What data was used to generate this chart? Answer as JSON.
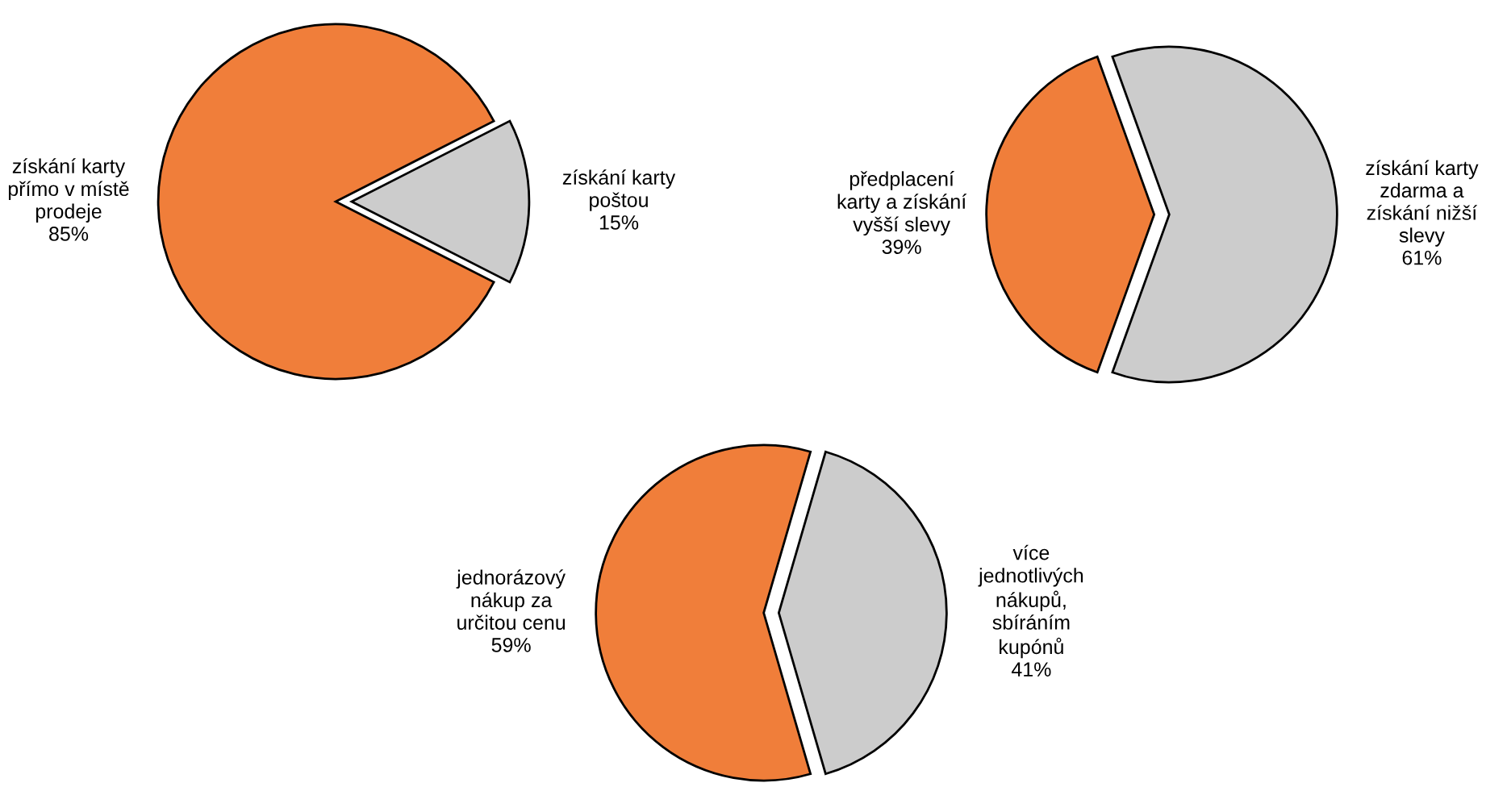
{
  "chart_data": [
    {
      "type": "pie",
      "categories": [
        "získání karty\npřímo v místě\nprodeje",
        "získání karty\npoštou"
      ],
      "values": [
        85,
        15
      ],
      "value_labels": [
        "85%",
        "15%"
      ],
      "colors": [
        "#f07e3a",
        "#cccccc"
      ]
    },
    {
      "type": "pie",
      "categories": [
        "předplacení\nkarty a získání\nvyšší slevy",
        "získání karty\nzdarma a\nzískání nižší\nslevy"
      ],
      "values": [
        39,
        61
      ],
      "value_labels": [
        "39%",
        "61%"
      ],
      "colors": [
        "#f07e3a",
        "#cccccc"
      ]
    },
    {
      "type": "pie",
      "categories": [
        "jednorázový\nnákup za\nurčitou cenu",
        "více\njednotlivých\nnákupů,\nsbíráním\nkupónů"
      ],
      "values": [
        59,
        41
      ],
      "value_labels": [
        "59%",
        "41%"
      ],
      "colors": [
        "#f07e3a",
        "#cccccc"
      ]
    }
  ]
}
